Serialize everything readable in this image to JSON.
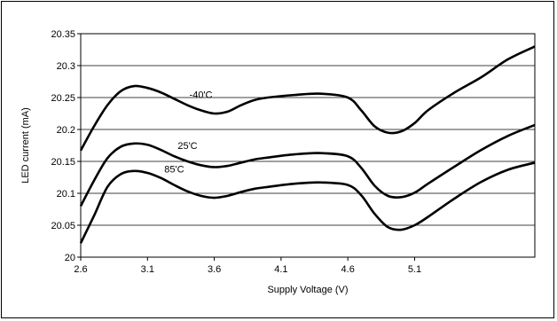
{
  "chart_data": {
    "type": "line",
    "title": "",
    "xlabel": "Supply Voltage (V)",
    "ylabel": "LED current (mA)",
    "xlim": [
      2.6,
      6.0
    ],
    "ylim": [
      20,
      20.35
    ],
    "x_ticks": [
      "2.6",
      "3.1",
      "3.6",
      "4.1",
      "4.6",
      "5.1"
    ],
    "y_ticks": [
      "20",
      "20.05",
      "20.1",
      "20.15",
      "20.2",
      "20.25",
      "20.3",
      "20.35"
    ],
    "grid": true,
    "series": [
      {
        "name": "-40'C",
        "x": [
          2.6,
          2.7,
          2.8,
          2.9,
          3.0,
          3.1,
          3.2,
          3.3,
          3.4,
          3.5,
          3.6,
          3.7,
          3.8,
          3.9,
          4.0,
          4.2,
          4.4,
          4.6,
          4.7,
          4.8,
          4.9,
          5.0,
          5.1,
          5.2,
          5.4,
          5.6,
          5.8,
          6.0
        ],
        "y": [
          20.167,
          20.205,
          20.238,
          20.26,
          20.268,
          20.265,
          20.258,
          20.248,
          20.238,
          20.23,
          20.225,
          20.228,
          20.238,
          20.246,
          20.25,
          20.254,
          20.256,
          20.25,
          20.23,
          20.205,
          20.195,
          20.197,
          20.21,
          20.23,
          20.258,
          20.282,
          20.31,
          20.33
        ]
      },
      {
        "name": "25'C",
        "x": [
          2.6,
          2.7,
          2.8,
          2.9,
          3.0,
          3.1,
          3.2,
          3.3,
          3.4,
          3.5,
          3.6,
          3.7,
          3.8,
          3.9,
          4.0,
          4.2,
          4.4,
          4.6,
          4.7,
          4.8,
          4.9,
          5.0,
          5.1,
          5.2,
          5.4,
          5.6,
          5.8,
          6.0
        ],
        "y": [
          20.08,
          20.12,
          20.155,
          20.173,
          20.178,
          20.176,
          20.168,
          20.158,
          20.15,
          20.144,
          20.141,
          20.143,
          20.148,
          20.153,
          20.156,
          20.161,
          20.163,
          20.158,
          20.14,
          20.112,
          20.096,
          20.094,
          20.101,
          20.115,
          20.142,
          20.168,
          20.19,
          20.207
        ]
      },
      {
        "name": "85'C",
        "x": [
          2.6,
          2.7,
          2.8,
          2.9,
          3.0,
          3.1,
          3.2,
          3.3,
          3.4,
          3.5,
          3.6,
          3.7,
          3.8,
          3.9,
          4.0,
          4.2,
          4.4,
          4.6,
          4.7,
          4.8,
          4.9,
          5.0,
          5.1,
          5.2,
          5.4,
          5.6,
          5.8,
          6.0
        ],
        "y": [
          20.022,
          20.065,
          20.11,
          20.13,
          20.135,
          20.132,
          20.124,
          20.113,
          20.103,
          20.096,
          20.093,
          20.096,
          20.102,
          20.107,
          20.11,
          20.115,
          20.117,
          20.113,
          20.097,
          20.068,
          20.047,
          20.043,
          20.05,
          20.063,
          20.092,
          20.118,
          20.137,
          20.148
        ]
      }
    ]
  }
}
